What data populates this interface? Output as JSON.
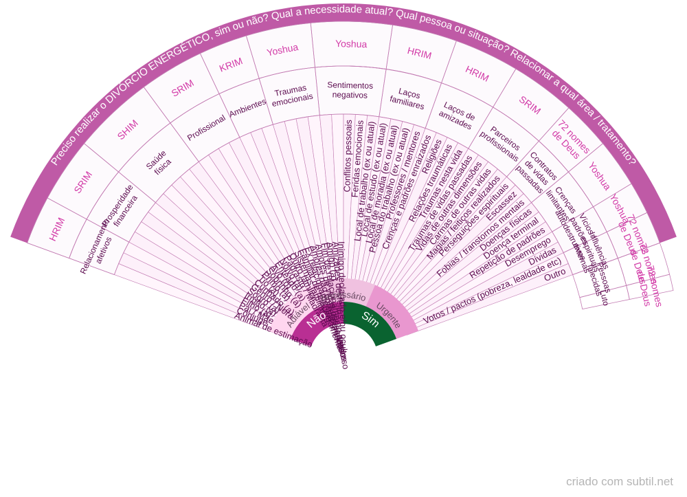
{
  "footer": "criado com subtil.net",
  "colors": {
    "outer_band": "#bf5aa6",
    "mid_band_bg": "#fdfafd",
    "detail_bg": "#fff5fc",
    "detail_bg_alt": "#fdf0fa",
    "line": "#c27bb2",
    "inner_nao": "#b92f93",
    "inner_sim": "#0a6330",
    "inner_adiavel": "#ffd6ef",
    "inner_necessario": "#f0c1e0",
    "inner_urgente": "#e997cf",
    "label_dark": "#5c0b4f",
    "label_pink": "#d23aa7",
    "label_white": "#ffffff"
  },
  "outer_band_text": "Preciso realizar o DIVÓRCIO ENERGÉTICO, sim ou não? Qual a necessidade atual? Qual pessoa ou situação? Relacionar a qual área / tratamento?",
  "inner_ring": [
    {
      "label": "Não",
      "color": "inner_nao",
      "text_color": "label_white"
    },
    {
      "label": "Sim",
      "color": "inner_sim",
      "text_color": "label_white"
    }
  ],
  "necessity_ring": [
    {
      "label": "Adiável",
      "color": "inner_adiavel"
    },
    {
      "label": "Necessário",
      "color": "inner_necessario"
    },
    {
      "label": "Urgente",
      "color": "inner_urgente"
    }
  ],
  "details": [
    "Animal de estimação",
    "Cônjuge",
    "Pai / Mãe",
    "Filho (a)",
    "Irmão (a)",
    "Sogro (a)",
    "Genro / Nora",
    "Cunhado (a)",
    "Tio (a)",
    "Primo (a)",
    "Sobrinho (a)",
    "Avô (ó)",
    "Enteado (a)",
    "Noivo (a)",
    "Padrasto / Madrasta",
    "Outro familiar",
    "Sistemas familiares",
    "Familiar de relacionamento",
    "Ex relacionamentos amorosos",
    "Amores não correspondidos",
    "Amores de vidas passadas",
    "Fim de relacionamento amoroso",
    "Amigo (a)",
    "Amizades desfeitas",
    "Inimigo declarado e/ou oculto",
    "Conflitos pessoais",
    "Feridas emocionais",
    "Local de trabalho (ex ou atual)",
    "Local de estudo (ex ou atual)",
    "Local de moradia (ex ou atual)",
    "Pessoa do trabalho (ex ou atual)",
    "Professores / mentores",
    "Crenças e padrões enraizados",
    "Religiões",
    "Relações traumáticas",
    "Traumas nesta vida",
    "Traumas de vidas passadas",
    "Vidas de outras dimensões",
    "Carmas de outras vidas",
    "Magias / feitiços realizados",
    "Perseguições espirituais",
    "Escassez",
    "Fobias / transtornos mentais",
    "Doenças físicas",
    "Doença terminal",
    "Repetição de padrões",
    "Desemprego",
    "Dívidas",
    "Votos / pactos (pobreza, lealdade etc)",
    "Outro"
  ],
  "categories": [
    {
      "label": "Relacionamento afetivos",
      "lines": [
        "Relacionamento",
        "afetivos"
      ],
      "span": 3
    },
    {
      "label": "Prosperidade financeira",
      "lines": [
        "Prosperidade",
        "financeira"
      ],
      "span": 4
    },
    {
      "label": "Saúde física",
      "lines": [
        "Saúde",
        "física"
      ],
      "span": 5
    },
    {
      "label": "Profissional",
      "lines": [
        "Profissional"
      ],
      "span": 4
    },
    {
      "label": "Ambientes",
      "lines": [
        "Ambientes"
      ],
      "span": 3
    },
    {
      "label": "Traumas emocionais",
      "lines": [
        "Traumas",
        "emocionais"
      ],
      "span": 4
    },
    {
      "label": "Sentimentos negativos",
      "lines": [
        "Sentimentos",
        "negativos"
      ],
      "span": 5
    },
    {
      "label": "Laços familiares",
      "lines": [
        "Laços",
        "familiares"
      ],
      "span": 4
    },
    {
      "label": "Laços de amizades",
      "lines": [
        "Laços de",
        "amizades"
      ],
      "span": 4
    },
    {
      "label": "Parceiros profissionais",
      "lines": [
        "Parceiros",
        "profissionais"
      ],
      "span": 4
    },
    {
      "label": "Contratos de vidas passadas",
      "lines": [
        "Contratos",
        "de vidas",
        "passadas"
      ],
      "span": 3
    },
    {
      "label": "Crenças limitantes",
      "lines": [
        "Crenças",
        "limitantes"
      ],
      "span": 3
    },
    {
      "label": "Vícios / padrões autodestrutivos",
      "lines": [
        "Vícios /",
        "padrões",
        "autodestrutivos"
      ],
      "span": 2
    },
    {
      "label": "Influências espirituais externas",
      "lines": [
        "Influências",
        "espirituais",
        "externas"
      ],
      "span": 2
    },
    {
      "label": "Pessoas falecidas",
      "lines": [
        "Pessoas",
        "falecidas"
      ],
      "span": 2
    },
    {
      "label": "Luto",
      "lines": [
        "Luto"
      ],
      "span": 1
    }
  ],
  "treatments": [
    {
      "label": "HRIM",
      "lines": [
        "HRIM"
      ]
    },
    {
      "label": "SRIM",
      "lines": [
        "SRIM"
      ]
    },
    {
      "label": "SHIM",
      "lines": [
        "SHIM"
      ]
    },
    {
      "label": "SRIM",
      "lines": [
        "SRIM"
      ]
    },
    {
      "label": "KRIM",
      "lines": [
        "KRIM"
      ]
    },
    {
      "label": "Yoshua",
      "lines": [
        "Yoshua"
      ]
    },
    {
      "label": "Yoshua",
      "lines": [
        "Yoshua"
      ]
    },
    {
      "label": "HRIM",
      "lines": [
        "HRIM"
      ]
    },
    {
      "label": "HRIM",
      "lines": [
        "HRIM"
      ]
    },
    {
      "label": "SRIM",
      "lines": [
        "SRIM"
      ]
    },
    {
      "label": "72 nomes de Deus",
      "lines": [
        "72 nomes",
        "de Deus"
      ]
    },
    {
      "label": "Yoshua",
      "lines": [
        "Yoshua"
      ]
    },
    {
      "label": "Yoshua",
      "lines": [
        "Yoshua"
      ]
    },
    {
      "label": "72 nomes de Deus",
      "lines": [
        "72 nomes",
        "de Deus"
      ]
    },
    {
      "label": "72 nomes de Deus",
      "lines": [
        "72 nomes",
        "de Deus"
      ]
    },
    {
      "label": "72 nomes de Deus",
      "lines": [
        "72 nomes",
        "de Deus"
      ]
    }
  ]
}
